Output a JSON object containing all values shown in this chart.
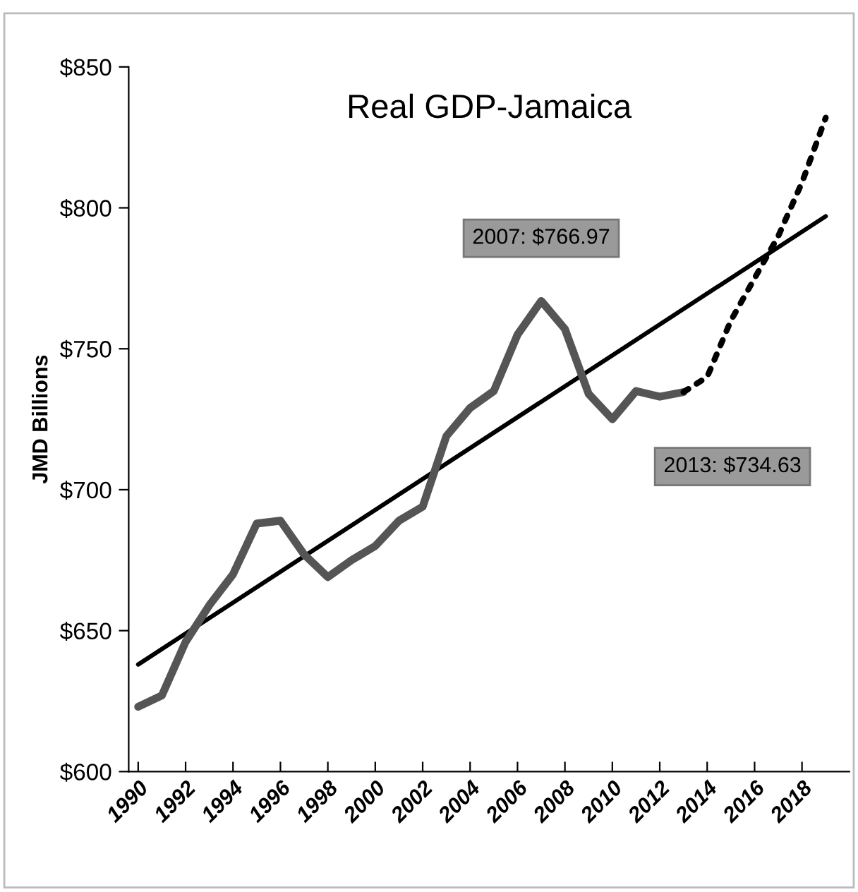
{
  "chart_data": {
    "type": "line",
    "title": "Real GDP-Jamaica",
    "ylabel": "JMD Billions",
    "xlim": [
      1989.6,
      2020
    ],
    "xticks": [
      1990,
      1992,
      1994,
      1996,
      1998,
      2000,
      2002,
      2004,
      2006,
      2008,
      2010,
      2012,
      2014,
      2016,
      2018
    ],
    "ylim": [
      600,
      850
    ],
    "yticks": [
      {
        "value": 600,
        "label": "$600"
      },
      {
        "value": 650,
        "label": "$650"
      },
      {
        "value": 700,
        "label": "$700"
      },
      {
        "value": 750,
        "label": "$750"
      },
      {
        "value": 800,
        "label": "$800"
      },
      {
        "value": 850,
        "label": "$850"
      }
    ],
    "grid": false,
    "legend": false,
    "marker": "none",
    "series": [
      {
        "color": "#555555",
        "line_style": "solid",
        "x": [
          1990,
          1991,
          1992,
          1993,
          1994,
          1995,
          1996,
          1997,
          1998,
          1999,
          2000,
          2001,
          2002,
          2003,
          2004,
          2005,
          2006,
          2007,
          2008,
          2009,
          2010,
          2011,
          2012,
          2013
        ],
        "values": [
          623,
          627,
          646,
          659,
          670,
          688,
          689,
          677,
          669,
          675,
          680,
          689,
          694,
          719,
          729,
          735,
          755,
          766.97,
          757,
          734,
          725,
          735,
          733,
          734.63
        ]
      },
      {
        "color": "#000000",
        "line_style": "dotted",
        "x": [
          2013,
          2014,
          2015,
          2016,
          2017,
          2018,
          2019
        ],
        "values": [
          734.63,
          740,
          760,
          775,
          790,
          809,
          832
        ]
      },
      {
        "color": "#000000",
        "line_style": "solid",
        "x": [
          1990,
          2019
        ],
        "values": [
          638,
          797
        ]
      }
    ],
    "annotations": [
      {
        "text": "2007: $766.97",
        "x": 2007,
        "y": 766.97
      },
      {
        "text": "2013: $734.63",
        "x": 2013,
        "y": 734.63
      }
    ]
  }
}
